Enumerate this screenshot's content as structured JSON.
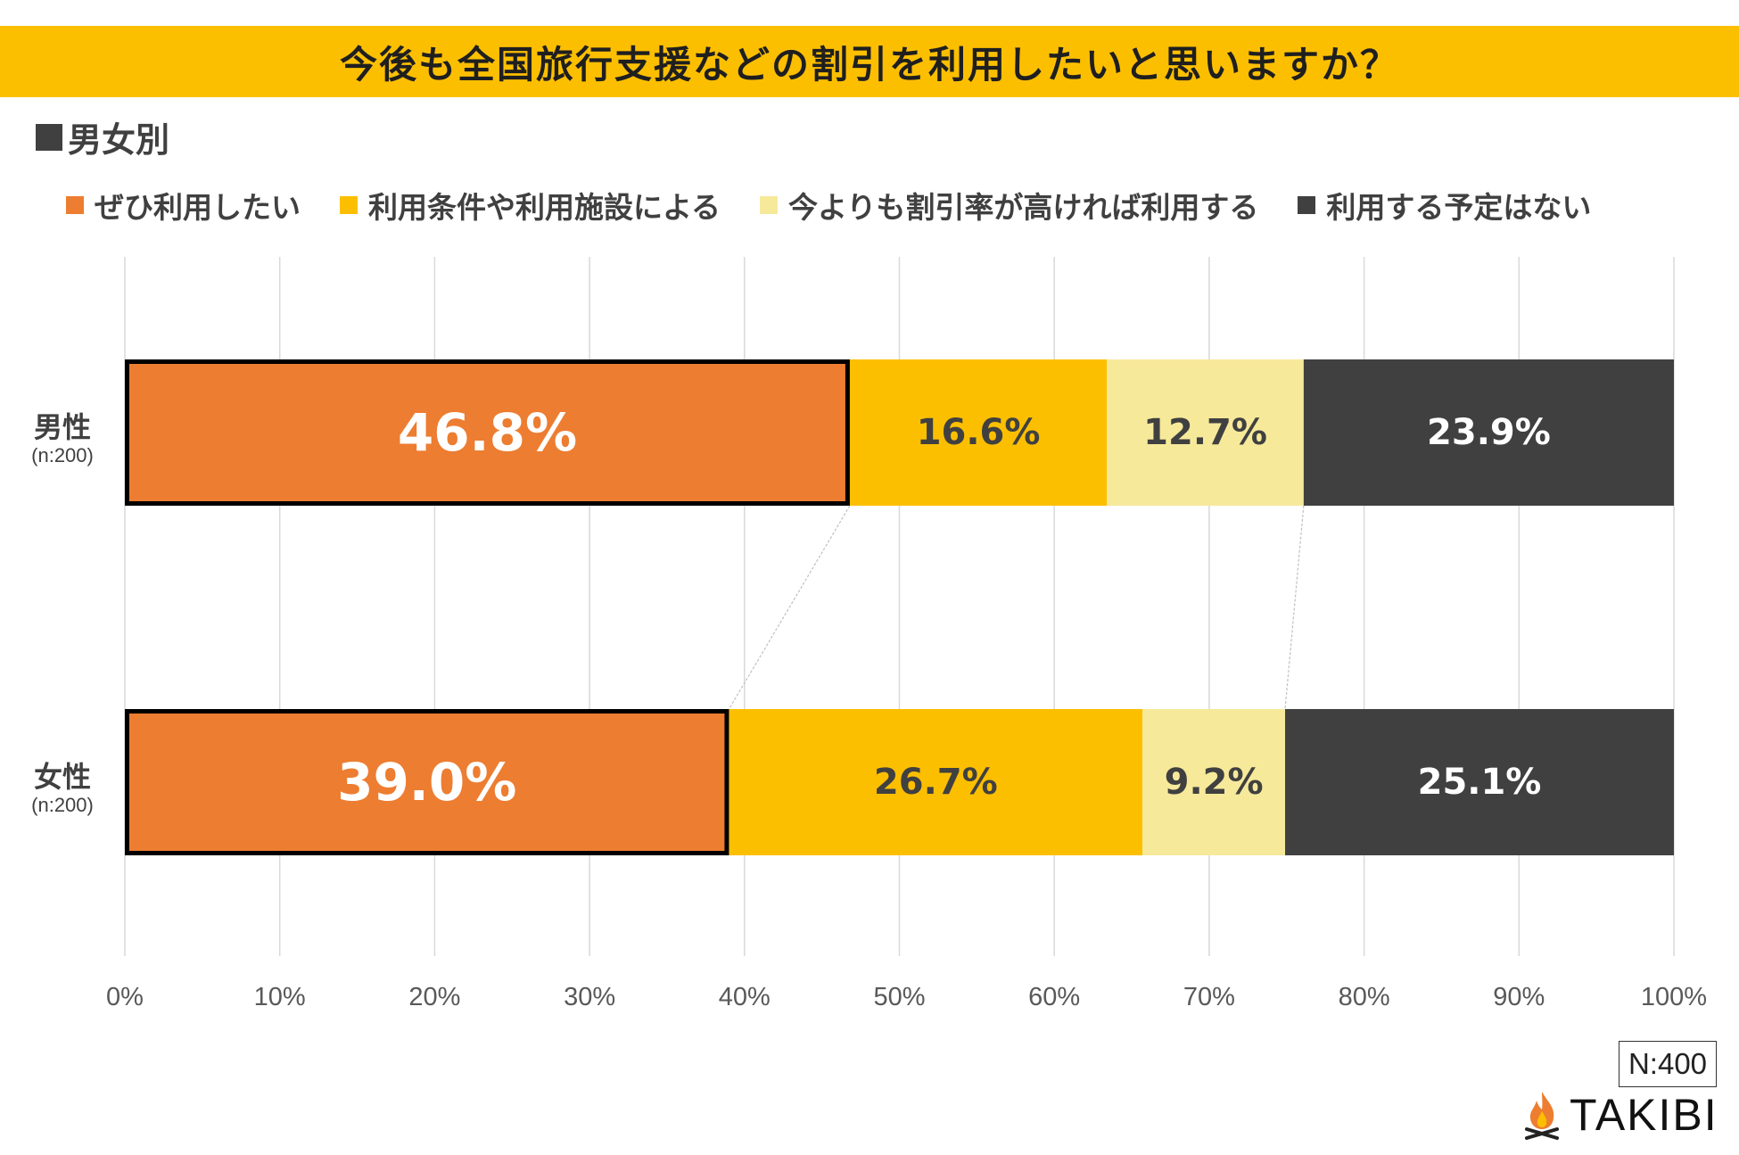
{
  "header": {
    "title": "今後も全国旅行支援などの割引を利用したいと思いますか？",
    "title_bg_color": "#fcbf00",
    "subtitle": "男女別"
  },
  "footer": {
    "sample_size": "N:400",
    "brand": "TAKIBI"
  },
  "chart_data": {
    "type": "bar",
    "orientation": "horizontal-stacked-100",
    "title": "今後も全国旅行支援などの割引を利用したいと思いますか？",
    "subtitle": "男女別",
    "xlabel": "",
    "ylabel": "",
    "xlim": [
      0,
      100
    ],
    "x_ticks": [
      "0%",
      "10%",
      "20%",
      "30%",
      "40%",
      "50%",
      "60%",
      "70%",
      "80%",
      "90%",
      "100%"
    ],
    "categories": [
      {
        "name": "男性",
        "n": "(n:200)"
      },
      {
        "name": "女性",
        "n": "(n:200)"
      }
    ],
    "series": [
      {
        "name": "ぜひ利用したい",
        "color": "#ed7d31",
        "label_color": "#ffffff",
        "values": [
          46.8,
          39.0
        ],
        "labels": [
          "46.8%",
          "39.0%"
        ],
        "highlighted": true
      },
      {
        "name": "利用条件や利用施設による",
        "color": "#fcbf00",
        "label_color": "#404040",
        "values": [
          16.6,
          26.7
        ],
        "labels": [
          "16.6%",
          "26.7%"
        ]
      },
      {
        "name": "今よりも割引率が高ければ利用する",
        "color": "#f6e99a",
        "label_color": "#404040",
        "values": [
          12.7,
          9.2
        ],
        "labels": [
          "12.7%",
          "9.2%"
        ]
      },
      {
        "name": "利用する予定はない",
        "color": "#404040",
        "label_color": "#ffffff",
        "values": [
          23.9,
          25.1
        ],
        "labels": [
          "23.9%",
          "25.1%"
        ]
      }
    ],
    "grid": true,
    "series_lines": true,
    "legend_position": "top"
  }
}
